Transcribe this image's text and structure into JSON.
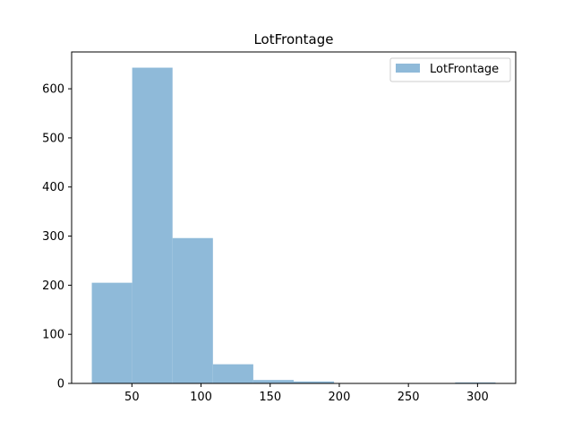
{
  "chart_data": {
    "type": "bar",
    "title": "LotFrontage",
    "xlabel": "",
    "ylabel": "",
    "bins": [
      {
        "x0": 21.0,
        "x1": 50.2,
        "count": 205
      },
      {
        "x0": 50.2,
        "x1": 79.4,
        "count": 643
      },
      {
        "x0": 79.4,
        "x1": 108.6,
        "count": 296
      },
      {
        "x0": 108.6,
        "x1": 137.8,
        "count": 39
      },
      {
        "x0": 137.8,
        "x1": 167.0,
        "count": 7
      },
      {
        "x0": 167.0,
        "x1": 196.2,
        "count": 4
      },
      {
        "x0": 196.2,
        "x1": 225.4,
        "count": 0
      },
      {
        "x0": 225.4,
        "x1": 254.6,
        "count": 0
      },
      {
        "x0": 254.6,
        "x1": 283.8,
        "count": 0
      },
      {
        "x0": 283.8,
        "x1": 313.0,
        "count": 2
      }
    ],
    "xlim": [
      6.4,
      327.6
    ],
    "ylim": [
      0,
      675
    ],
    "xticks": [
      50,
      100,
      150,
      200,
      250,
      300
    ],
    "yticks": [
      0,
      100,
      200,
      300,
      400,
      500,
      600
    ],
    "series": [
      {
        "name": "LotFrontage",
        "color": "#8fbad9"
      }
    ],
    "legend": "top-right",
    "grid": false
  }
}
